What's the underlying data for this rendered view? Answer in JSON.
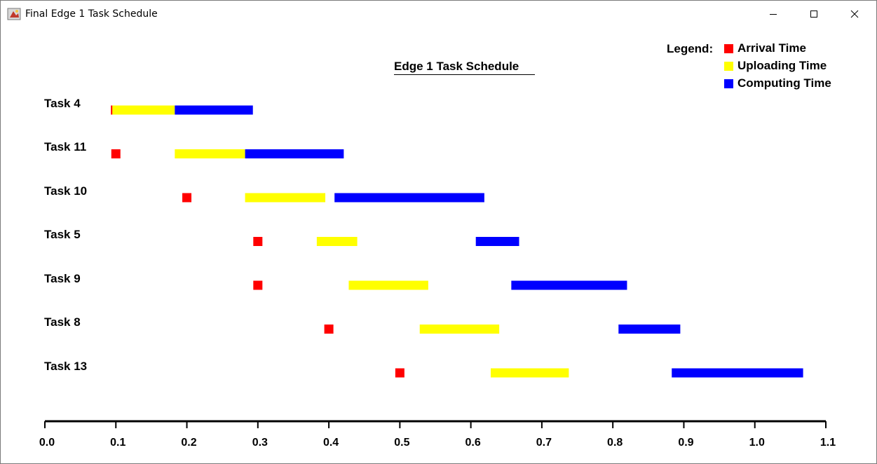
{
  "window": {
    "title": "Final Edge 1 Task Schedule",
    "icons": {
      "app": "java-app-icon",
      "minimize": "minimize-icon",
      "maximize": "maximize-icon",
      "close": "close-icon"
    }
  },
  "legend": {
    "heading": "Legend:",
    "items": [
      {
        "label": "Arrival Time",
        "color": "#ff0000"
      },
      {
        "label": "Uploading Time",
        "color": "#ffff00"
      },
      {
        "label": "Computing Time",
        "color": "#0000ff"
      }
    ]
  },
  "chart_data": {
    "type": "gantt",
    "title": "Edge 1 Task Schedule",
    "xlim": [
      0.0,
      1.1
    ],
    "x_ticks": [
      "0.0",
      "0.1",
      "0.2",
      "0.3",
      "0.4",
      "0.5",
      "0.6",
      "0.7",
      "0.8",
      "0.9",
      "1.0",
      "1.1"
    ],
    "colors": {
      "arrival": "#ff0000",
      "uploading": "#ffff00",
      "computing": "#0000ff"
    },
    "tasks": [
      {
        "name": "Task 4",
        "arrival": 0.094,
        "uploading": [
          0.094,
          0.183
        ],
        "computing": [
          0.183,
          0.293
        ]
      },
      {
        "name": "Task 11",
        "arrival": 0.1,
        "uploading": [
          0.183,
          0.282
        ],
        "computing": [
          0.282,
          0.421
        ]
      },
      {
        "name": "Task 10",
        "arrival": 0.2,
        "uploading": [
          0.282,
          0.395
        ],
        "computing": [
          0.408,
          0.619
        ]
      },
      {
        "name": "Task 5",
        "arrival": 0.3,
        "uploading": [
          0.383,
          0.44
        ],
        "computing": [
          0.607,
          0.668
        ]
      },
      {
        "name": "Task 9",
        "arrival": 0.3,
        "uploading": [
          0.428,
          0.54
        ],
        "computing": [
          0.657,
          0.82
        ]
      },
      {
        "name": "Task 8",
        "arrival": 0.4,
        "uploading": [
          0.528,
          0.64
        ],
        "computing": [
          0.808,
          0.895
        ]
      },
      {
        "name": "Task 13",
        "arrival": 0.5,
        "uploading": [
          0.628,
          0.738
        ],
        "computing": [
          0.883,
          1.068
        ]
      }
    ]
  }
}
